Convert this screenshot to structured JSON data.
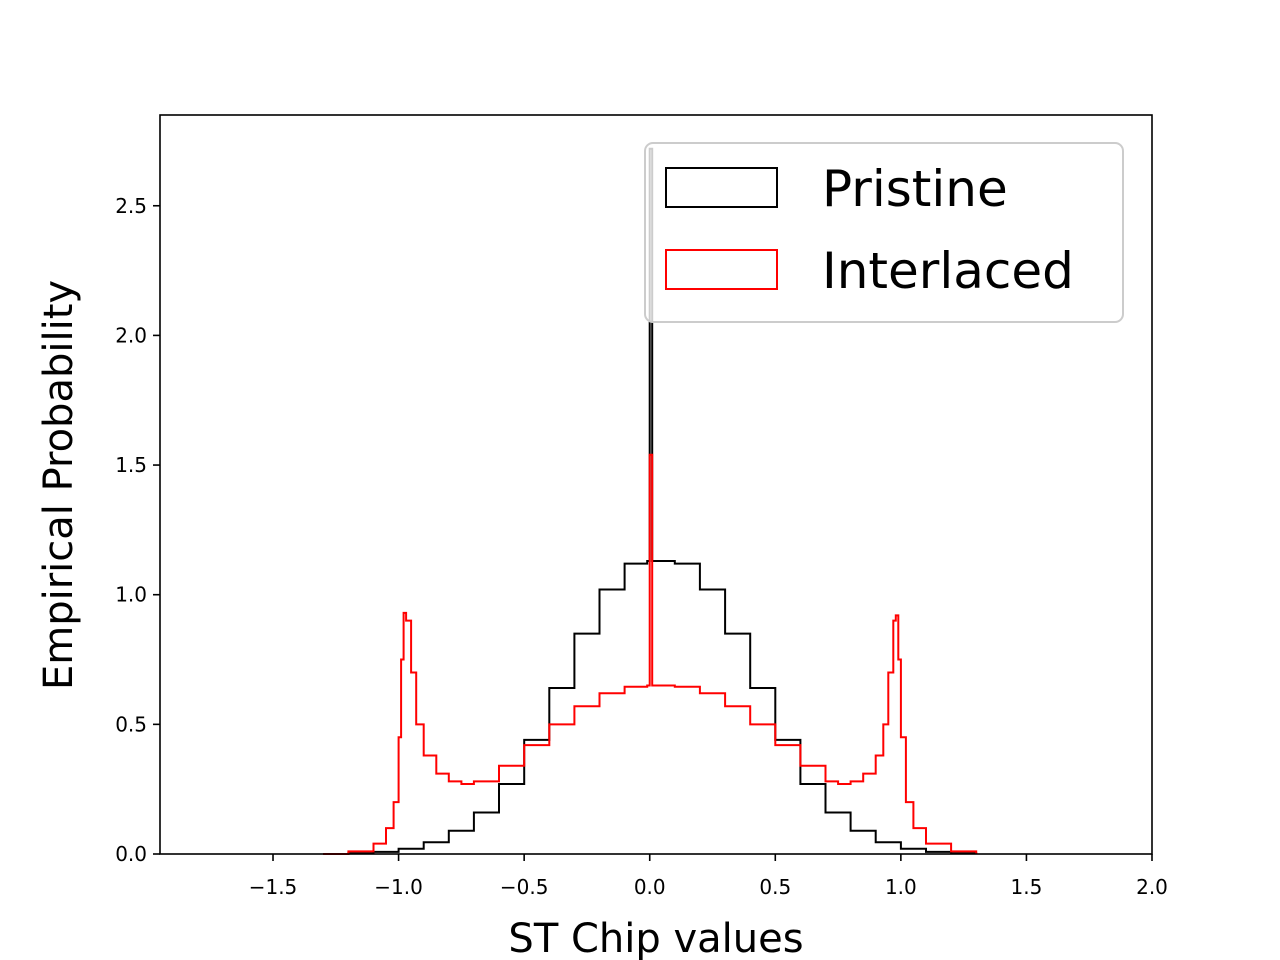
{
  "chart_data": {
    "type": "line",
    "xlabel": "ST Chip values",
    "ylabel": "Empirical Probability",
    "xlim": [
      -1.95,
      2.0
    ],
    "ylim": [
      0.0,
      2.85
    ],
    "xticks": [
      -1.5,
      -1.0,
      -0.5,
      0.0,
      0.5,
      1.0,
      1.5,
      2.0
    ],
    "xtick_labels": [
      "−1.5",
      "−1.0",
      "−0.5",
      "0.0",
      "0.5",
      "1.0",
      "1.5",
      "2.0"
    ],
    "yticks": [
      0.0,
      0.5,
      1.0,
      1.5,
      2.0,
      2.5
    ],
    "ytick_labels": [
      "0.0",
      "0.5",
      "1.0",
      "1.5",
      "2.0",
      "2.5"
    ],
    "legend_position": "top-right",
    "series": [
      {
        "name": "Pristine",
        "color": "#000000",
        "style": "step",
        "x": [
          -1.3,
          -1.2,
          -1.1,
          -1.0,
          -0.9,
          -0.8,
          -0.7,
          -0.6,
          -0.5,
          -0.4,
          -0.3,
          -0.2,
          -0.1,
          -0.01,
          0.0,
          0.01,
          0.1,
          0.2,
          0.3,
          0.4,
          0.5,
          0.6,
          0.7,
          0.8,
          0.9,
          1.0,
          1.1,
          1.2,
          1.3
        ],
        "y": [
          0.0,
          0.003,
          0.008,
          0.02,
          0.045,
          0.09,
          0.16,
          0.27,
          0.44,
          0.64,
          0.85,
          1.02,
          1.12,
          1.13,
          2.72,
          1.13,
          1.12,
          1.02,
          0.85,
          0.64,
          0.44,
          0.27,
          0.16,
          0.09,
          0.045,
          0.02,
          0.008,
          0.003,
          0.0
        ]
      },
      {
        "name": "Interlaced",
        "color": "#ff0000",
        "style": "step",
        "x": [
          -1.3,
          -1.2,
          -1.1,
          -1.05,
          -1.02,
          -1.0,
          -0.99,
          -0.98,
          -0.97,
          -0.95,
          -0.93,
          -0.9,
          -0.85,
          -0.8,
          -0.75,
          -0.7,
          -0.6,
          -0.5,
          -0.4,
          -0.3,
          -0.2,
          -0.1,
          -0.01,
          0.0,
          0.01,
          0.1,
          0.2,
          0.3,
          0.4,
          0.5,
          0.6,
          0.7,
          0.75,
          0.8,
          0.85,
          0.9,
          0.93,
          0.95,
          0.97,
          0.98,
          0.99,
          1.0,
          1.02,
          1.05,
          1.1,
          1.2,
          1.3
        ],
        "y": [
          0.0,
          0.01,
          0.04,
          0.1,
          0.2,
          0.45,
          0.75,
          0.93,
          0.9,
          0.7,
          0.5,
          0.38,
          0.31,
          0.28,
          0.27,
          0.28,
          0.34,
          0.42,
          0.5,
          0.57,
          0.62,
          0.645,
          0.65,
          1.54,
          0.65,
          0.645,
          0.62,
          0.57,
          0.5,
          0.42,
          0.34,
          0.28,
          0.27,
          0.28,
          0.31,
          0.38,
          0.5,
          0.7,
          0.9,
          0.92,
          0.75,
          0.45,
          0.2,
          0.1,
          0.04,
          0.01,
          0.0
        ]
      }
    ]
  }
}
